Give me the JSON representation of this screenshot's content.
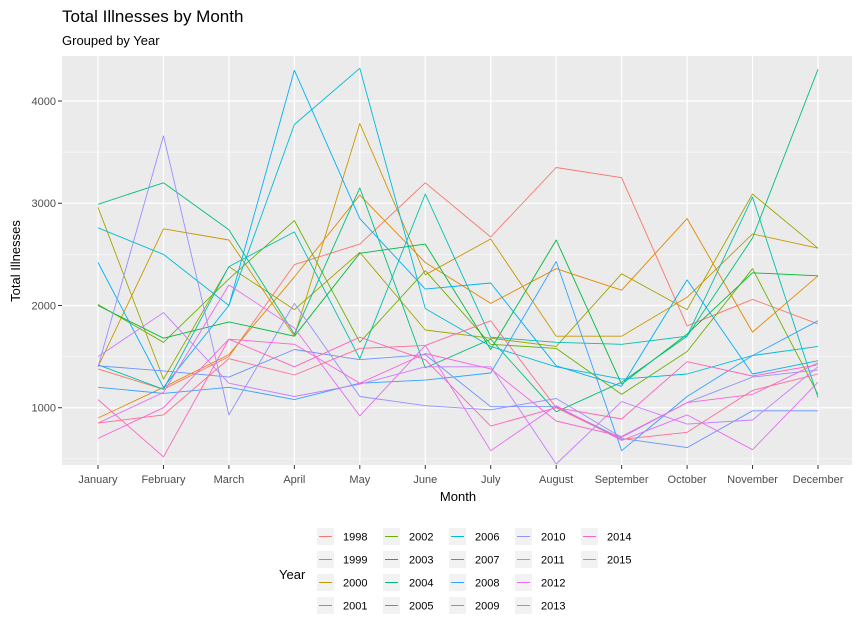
{
  "chart_data": {
    "type": "line",
    "title": "Total Illnesses by Month",
    "subtitle": "Grouped by Year",
    "xlabel": "Month",
    "ylabel": "Total Illnesses",
    "categories": [
      "January",
      "February",
      "March",
      "April",
      "May",
      "June",
      "July",
      "August",
      "September",
      "October",
      "November",
      "December"
    ],
    "ylim": [
      440,
      4440
    ],
    "yticks": [
      1000,
      2000,
      3000,
      4000
    ],
    "grid": true,
    "legend_title": "Year",
    "legend_position": "bottom",
    "background": "#ebebeb",
    "series": [
      {
        "name": "1998",
        "color": "#F8766D",
        "values": [
          1380,
          1180,
          1500,
          2400,
          2600,
          3200,
          2670,
          3350,
          3250,
          1800,
          2060,
          1820
        ]
      },
      {
        "name": "1999",
        "color": "#E58700",
        "values": [
          900,
          1200,
          1520,
          2280,
          3080,
          2420,
          2020,
          2360,
          2150,
          2850,
          1740,
          2290
        ]
      },
      {
        "name": "2000",
        "color": "#C99800",
        "values": [
          1400,
          2750,
          2640,
          1700,
          3780,
          2300,
          2650,
          1700,
          1700,
          2080,
          2700,
          2560
        ]
      },
      {
        "name": "2001",
        "color": "#A3A500",
        "values": [
          2960,
          1280,
          2380,
          1960,
          2520,
          1760,
          1680,
          1600,
          2310,
          1960,
          3090,
          2560
        ]
      },
      {
        "name": "2002",
        "color": "#6BB100",
        "values": [
          2010,
          1640,
          2260,
          2830,
          1640,
          2340,
          1620,
          1580,
          1130,
          1550,
          2360,
          1130
        ]
      },
      {
        "name": "2003",
        "color": "#00BA38",
        "values": [
          2000,
          1680,
          1840,
          1700,
          2510,
          2600,
          1570,
          2640,
          1230,
          1720,
          2320,
          2290
        ]
      },
      {
        "name": "2004",
        "color": "#00BF7D",
        "values": [
          2990,
          3200,
          2740,
          1720,
          3150,
          1390,
          1670,
          960,
          1250,
          1700,
          2660,
          4310
        ]
      },
      {
        "name": "2005",
        "color": "#00C0AF",
        "values": [
          1420,
          1180,
          2380,
          2720,
          1480,
          3090,
          1690,
          1640,
          1620,
          1700,
          3060,
          1100
        ]
      },
      {
        "name": "2006",
        "color": "#00BCD8",
        "values": [
          2760,
          2500,
          2000,
          3770,
          4320,
          1970,
          1600,
          1400,
          1280,
          1330,
          1510,
          1600
        ]
      },
      {
        "name": "2007",
        "color": "#00B0F6",
        "values": [
          2420,
          1200,
          2000,
          4300,
          2850,
          2160,
          2220,
          1410,
          1210,
          2250,
          1330,
          1460
        ]
      },
      {
        "name": "2008",
        "color": "#35A2FF",
        "values": [
          1200,
          1140,
          1200,
          1080,
          1240,
          1270,
          1340,
          2430,
          580,
          1110,
          1510,
          1850
        ]
      },
      {
        "name": "2009",
        "color": "#6A93FF",
        "values": [
          1410,
          1360,
          1300,
          1570,
          1470,
          1520,
          1010,
          1010,
          700,
          610,
          970,
          970
        ]
      },
      {
        "name": "2010",
        "color": "#9590FF",
        "values": [
          1400,
          3660,
          930,
          2020,
          1110,
          1020,
          980,
          1090,
          710,
          1050,
          1300,
          1370
        ]
      },
      {
        "name": "2011",
        "color": "#C77CFF",
        "values": [
          1500,
          1930,
          1240,
          1110,
          1230,
          1400,
          1400,
          450,
          1060,
          840,
          880,
          1400
        ]
      },
      {
        "name": "2012",
        "color": "#E76BF3",
        "values": [
          850,
          1150,
          2200,
          1780,
          920,
          1610,
          580,
          1020,
          680,
          930,
          590,
          1250
        ]
      },
      {
        "name": "2013",
        "color": "#FA62DB",
        "values": [
          700,
          1000,
          1670,
          1620,
          1240,
          1530,
          1380,
          870,
          720,
          1050,
          1130,
          1440
        ]
      },
      {
        "name": "2014",
        "color": "#FF62BC",
        "values": [
          1080,
          520,
          1670,
          1400,
          1690,
          1470,
          820,
          1000,
          890,
          1450,
          1310,
          1420
        ]
      },
      {
        "name": "2015",
        "color": "#FF6C90",
        "values": [
          850,
          930,
          1480,
          1320,
          1580,
          1610,
          1850,
          1000,
          690,
          760,
          1170,
          1330
        ]
      }
    ]
  }
}
